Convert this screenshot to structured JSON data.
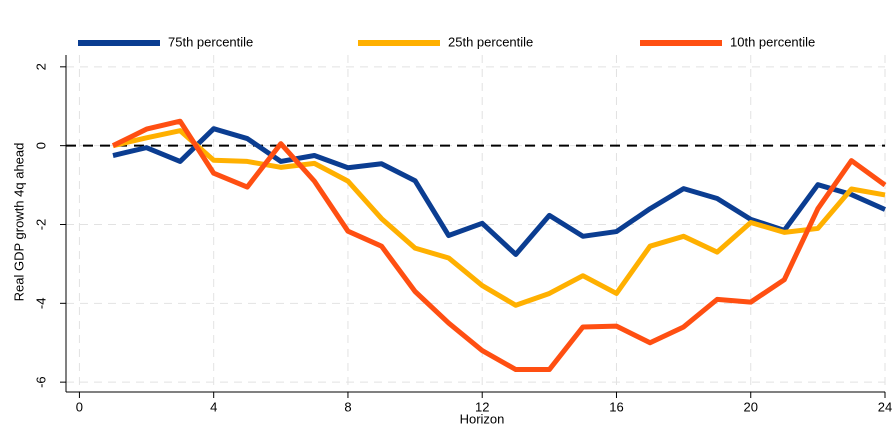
{
  "chart_data": {
    "type": "line",
    "x_label": "Horizon",
    "y_label": "Real GDP growth 4q ahead",
    "x": [
      1,
      2,
      3,
      4,
      5,
      6,
      7,
      8,
      9,
      10,
      11,
      12,
      13,
      14,
      15,
      16,
      17,
      18,
      19,
      20,
      21,
      22,
      23,
      24
    ],
    "series": [
      {
        "name": "75th percentile",
        "color": "#0b3d91",
        "values": [
          -0.25,
          -0.05,
          -0.4,
          0.43,
          0.18,
          -0.4,
          -0.25,
          -0.56,
          -0.46,
          -0.89,
          -2.28,
          -1.97,
          -2.76,
          -1.77,
          -2.3,
          -2.18,
          -1.6,
          -1.09,
          -1.34,
          -1.87,
          -2.15,
          -0.99,
          -1.24,
          -1.62
        ]
      },
      {
        "name": "25th percentile",
        "color": "#ffb000",
        "values": [
          0,
          0.2,
          0.38,
          -0.37,
          -0.4,
          -0.55,
          -0.45,
          -0.9,
          -1.85,
          -2.6,
          -2.85,
          -3.55,
          -4.05,
          -3.75,
          -3.3,
          -3.75,
          -2.55,
          -2.3,
          -2.7,
          -1.95,
          -2.2,
          -2.1,
          -1.1,
          -1.25
        ]
      },
      {
        "name": "10th percentile",
        "color": "#ff4f12",
        "values": [
          0,
          0.42,
          0.62,
          -0.7,
          -1.05,
          0.05,
          -0.9,
          -2.17,
          -2.55,
          -3.7,
          -4.5,
          -5.2,
          -5.68,
          -5.68,
          -4.6,
          -4.58,
          -5.0,
          -4.6,
          -3.9,
          -3.97,
          -3.4,
          -1.6,
          -0.38,
          -1.0
        ]
      }
    ],
    "xlim": [
      -0.4,
      24
    ],
    "ylim": [
      -6.25,
      2.3
    ],
    "xticks": [
      0,
      4,
      8,
      12,
      16,
      20,
      24
    ],
    "yticks": [
      -6,
      -4,
      -2,
      0,
      2
    ],
    "reference_line": 0,
    "grid": true,
    "legend": "top"
  }
}
